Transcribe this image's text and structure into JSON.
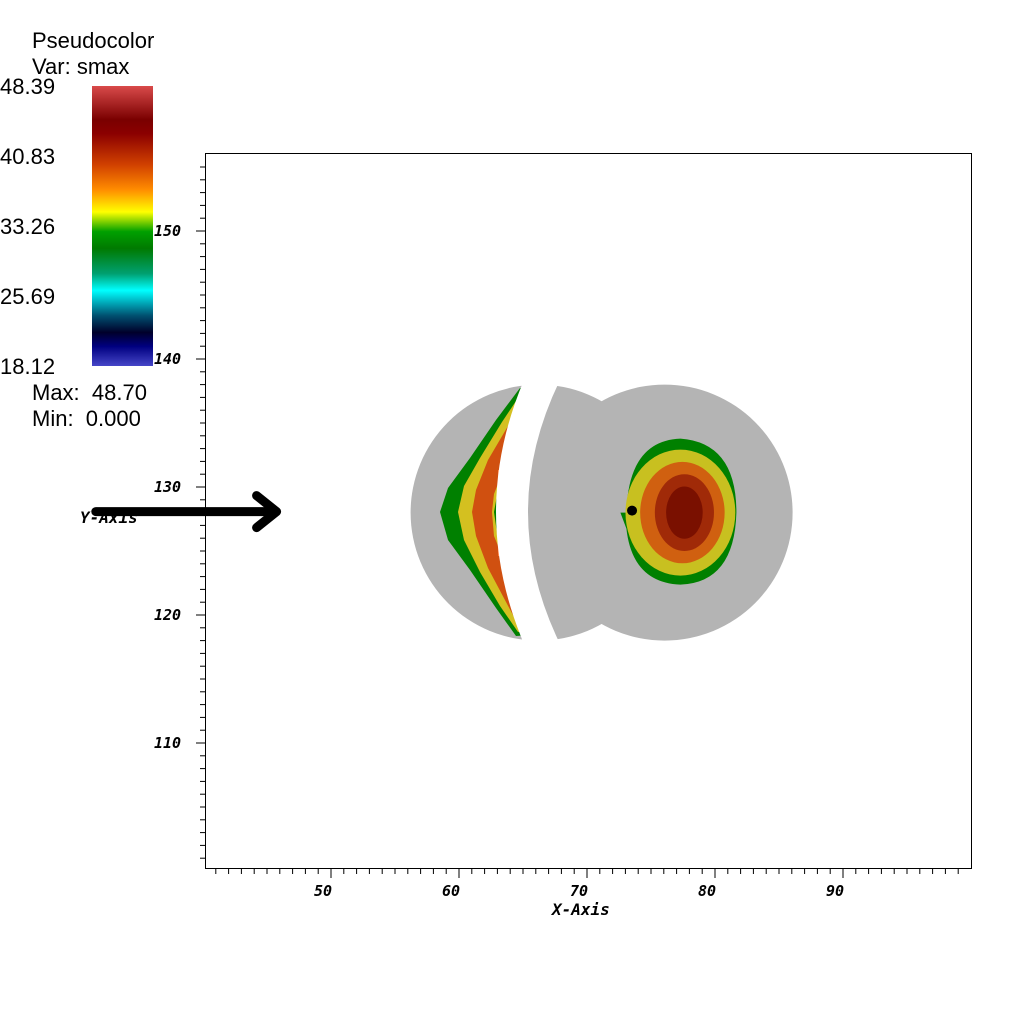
{
  "legend": {
    "title": "Pseudocolor",
    "variable": "Var: smax",
    "ticks": [
      "48.39",
      "40.83",
      "33.26",
      "25.69",
      "18.12"
    ],
    "max": "Max:  48.70",
    "min": "Min:  0.000"
  },
  "chart_data": {
    "type": "heatmap",
    "title": "",
    "xlabel": "X-Axis",
    "ylabel": "Y-Axis",
    "xlim": [
      40,
      100
    ],
    "ylim": [
      100,
      156
    ],
    "x_ticks": [
      "50",
      "60",
      "70",
      "80",
      "90"
    ],
    "y_ticks": [
      "110",
      "120",
      "130",
      "140",
      "150"
    ],
    "colorbar_range": [
      18.12,
      48.39
    ],
    "features": [
      {
        "name": "",
        "shape": "disc",
        "center": [
          67,
          128
        ],
        "radius": 10
      },
      {
        "name": "",
        "shape": "crescent-field",
        "x_range": [
          59,
          66
        ],
        "y_range": [
          119,
          138
        ]
      },
      {
        "name": "",
        "shape": "disc",
        "center": [
          77,
          128
        ],
        "radius": 10
      },
      {
        "name": "",
        "shape": "oval-field",
        "center": [
          78,
          128
        ],
        "x_radius": 5.5,
        "y_radius": 6
      },
      {
        "name": "",
        "shape": "point",
        "x": 74.3,
        "y": 128
      },
      {
        "name": "",
        "shape": "arrow",
        "from": [
          41,
          128
        ],
        "to": [
          54.5,
          128
        ]
      }
    ],
    "colors": {
      "disc": "#b4b4b4",
      "arrow": "#000000"
    }
  }
}
